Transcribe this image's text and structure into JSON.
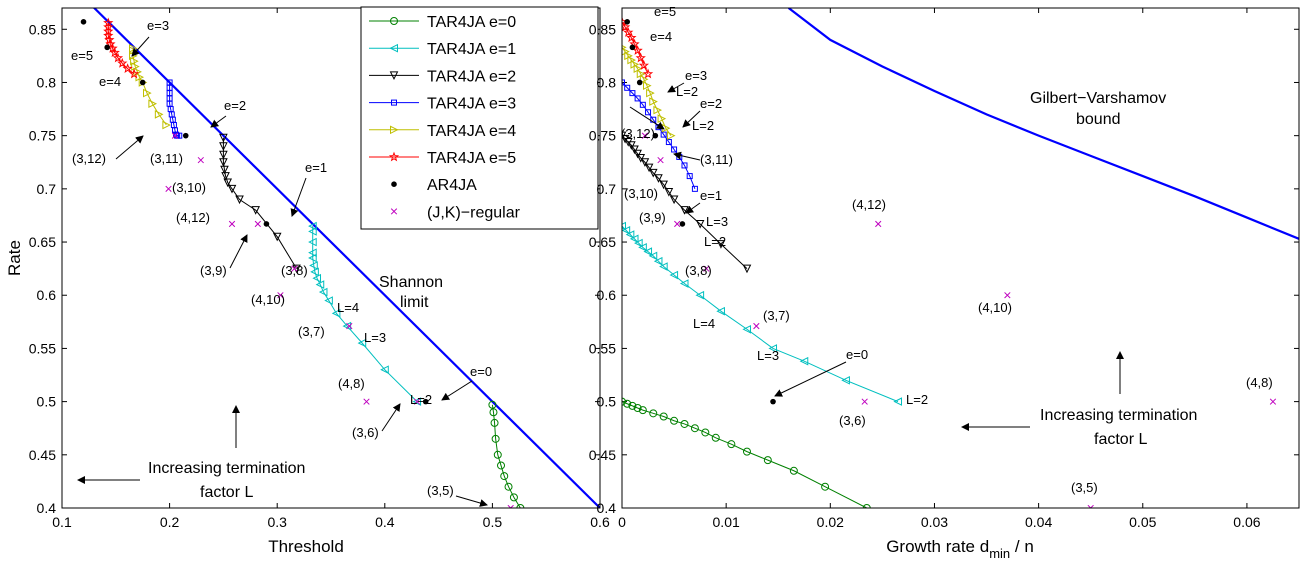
{
  "chart_data": [
    {
      "type": "line",
      "xlabel": "Threshold",
      "ylabel": "Rate",
      "xlim": [
        0.1,
        0.6
      ],
      "ylim": [
        0.4,
        0.87
      ],
      "xticks": [
        "0.1",
        "0.2",
        "0.3",
        "0.4",
        "0.5",
        "0.6"
      ],
      "yticks": [
        "0.4",
        "0.45",
        "0.5",
        "0.55",
        "0.6",
        "0.65",
        "0.7",
        "0.75",
        "0.8",
        "0.85"
      ],
      "grid": false,
      "legend_position": "top-right",
      "legend": [
        {
          "label": "TAR4JA e=0",
          "color": "#008000",
          "marker": "circle",
          "line": true
        },
        {
          "label": "TAR4JA e=1",
          "color": "#00bfbf",
          "marker": "triangle-left",
          "line": true
        },
        {
          "label": "TAR4JA e=2",
          "color": "#000000",
          "marker": "triangle-down",
          "line": true
        },
        {
          "label": "TAR4JA e=3",
          "color": "#0000ff",
          "marker": "square",
          "line": true
        },
        {
          "label": "TAR4JA e=4",
          "color": "#bfbf00",
          "marker": "triangle-right",
          "line": true
        },
        {
          "label": "TAR4JA e=5",
          "color": "#ff0000",
          "marker": "star",
          "line": true
        },
        {
          "label": "AR4JA",
          "color": "#000000",
          "marker": "dot",
          "line": false
        },
        {
          "label": "(J,K)−regular",
          "color": "#bf00bf",
          "marker": "x",
          "line": false
        }
      ],
      "limit_line": {
        "x": [
          0.1,
          0.6
        ],
        "y": [
          0.9,
          0.4
        ],
        "color": "#0000ff"
      },
      "series": [
        {
          "name": "TAR4JA e=0",
          "color": "#008000",
          "marker": "circle",
          "x": [
            0.5,
            0.501,
            0.502,
            0.503,
            0.505,
            0.508,
            0.511,
            0.515,
            0.52,
            0.526
          ],
          "y": [
            0.497,
            0.49,
            0.48,
            0.465,
            0.45,
            0.44,
            0.43,
            0.42,
            0.41,
            0.4
          ]
        },
        {
          "name": "TAR4JA e=1",
          "color": "#00bfbf",
          "marker": "triangle-left",
          "x": [
            0.333,
            0.333,
            0.333,
            0.333,
            0.333,
            0.334,
            0.335,
            0.337,
            0.34,
            0.343,
            0.348,
            0.355,
            0.365,
            0.379,
            0.4,
            0.43
          ],
          "y": [
            0.665,
            0.66,
            0.65,
            0.64,
            0.635,
            0.628,
            0.622,
            0.616,
            0.61,
            0.603,
            0.595,
            0.583,
            0.571,
            0.555,
            0.53,
            0.5
          ]
        },
        {
          "name": "TAR4JA e=2",
          "color": "#000000",
          "marker": "triangle-down",
          "x": [
            0.25,
            0.25,
            0.25,
            0.25,
            0.251,
            0.252,
            0.254,
            0.258,
            0.265,
            0.28,
            0.3,
            0.318
          ],
          "y": [
            0.748,
            0.74,
            0.732,
            0.725,
            0.718,
            0.712,
            0.706,
            0.7,
            0.69,
            0.68,
            0.655,
            0.625
          ]
        },
        {
          "name": "TAR4JA e=3",
          "color": "#0000ff",
          "marker": "square",
          "x": [
            0.2,
            0.2,
            0.2,
            0.2,
            0.2,
            0.201,
            0.202,
            0.203,
            0.204,
            0.205,
            0.206,
            0.207,
            0.209
          ],
          "y": [
            0.8,
            0.795,
            0.79,
            0.785,
            0.78,
            0.775,
            0.77,
            0.765,
            0.76,
            0.755,
            0.751,
            0.75,
            0.75
          ]
        },
        {
          "name": "TAR4JA e=4",
          "color": "#bfbf00",
          "marker": "triangle-right",
          "x": [
            0.166,
            0.166,
            0.166,
            0.167,
            0.168,
            0.17,
            0.172,
            0.175,
            0.179,
            0.184,
            0.19,
            0.197
          ],
          "y": [
            0.832,
            0.83,
            0.825,
            0.82,
            0.815,
            0.81,
            0.805,
            0.8,
            0.79,
            0.78,
            0.77,
            0.76
          ]
        },
        {
          "name": "TAR4JA e=5",
          "color": "#ff0000",
          "marker": "star",
          "x": [
            0.143,
            0.143,
            0.143,
            0.143,
            0.144,
            0.145,
            0.147,
            0.149,
            0.152,
            0.156,
            0.161,
            0.167
          ],
          "y": [
            0.856,
            0.852,
            0.848,
            0.844,
            0.84,
            0.836,
            0.832,
            0.828,
            0.823,
            0.818,
            0.813,
            0.808
          ]
        }
      ],
      "ar4ja": {
        "x": [
          0.438,
          0.29,
          0.215,
          0.175,
          0.142,
          0.12
        ],
        "y": [
          0.5,
          0.667,
          0.75,
          0.8,
          0.833,
          0.857
        ]
      },
      "regular": {
        "x": [
          0.517,
          0.43,
          0.383,
          0.367,
          0.316,
          0.282,
          0.258,
          0.303,
          0.205,
          0.229,
          0.199
        ],
        "y": [
          0.4,
          0.5,
          0.5,
          0.571,
          0.625,
          0.667,
          0.667,
          0.6,
          0.75,
          0.727,
          0.7
        ]
      },
      "annotations": {
        "e0": "e=0",
        "e1": "e=1",
        "e2": "e=2",
        "e3": "e=3",
        "e4": "e=4",
        "e5": "e=5",
        "l2": "L=2",
        "l3": "L=3",
        "l4": "L=4",
        "r35": "(3,5)",
        "r36": "(3,6)",
        "r48": "(4,8)",
        "r37": "(3,7)",
        "r410": "(4,10)",
        "r38": "(3,8)",
        "r39": "(3,9)",
        "r412": "(4,12)",
        "r310": "(3,10)",
        "r311": "(3,11)",
        "r312": "(3,12)",
        "shannon_line1": "Shannon",
        "shannon_line2": "limit",
        "inc_line1": "Increasing termination",
        "inc_line2": "factor L"
      }
    },
    {
      "type": "line",
      "xlabel": "Growth rate d",
      "xlabel_sub": "min",
      "xlabel_tail": " / n",
      "xlim": [
        0,
        0.065
      ],
      "ylim": [
        0.4,
        0.87
      ],
      "xticks": [
        "0",
        "0.01",
        "0.02",
        "0.03",
        "0.04",
        "0.05",
        "0.06"
      ],
      "yticks": [
        "0.4",
        "0.45",
        "0.5",
        "0.55",
        "0.6",
        "0.65",
        "0.7",
        "0.75",
        "0.8",
        "0.85"
      ],
      "grid": false,
      "limit_curve": {
        "x": [
          0.016,
          0.02,
          0.025,
          0.03,
          0.035,
          0.04,
          0.045,
          0.05,
          0.055,
          0.06,
          0.065
        ],
        "y": [
          0.87,
          0.84,
          0.815,
          0.792,
          0.77,
          0.75,
          0.731,
          0.712,
          0.693,
          0.673,
          0.653
        ],
        "color": "#0000ff"
      },
      "series": [
        {
          "name": "TAR4JA e=0",
          "color": "#008000",
          "marker": "circle",
          "x": [
            0.0,
            0.0005,
            0.001,
            0.0015,
            0.002,
            0.003,
            0.004,
            0.005,
            0.006,
            0.007,
            0.008,
            0.009,
            0.0105,
            0.012,
            0.014,
            0.0165,
            0.0195,
            0.0235
          ],
          "y": [
            0.5,
            0.498,
            0.496,
            0.494,
            0.492,
            0.489,
            0.486,
            0.482,
            0.479,
            0.475,
            0.471,
            0.466,
            0.46,
            0.453,
            0.445,
            0.435,
            0.42,
            0.4
          ]
        },
        {
          "name": "TAR4JA e=1",
          "color": "#00bfbf",
          "marker": "triangle-left",
          "x": [
            0.0,
            0.0004,
            0.0008,
            0.0012,
            0.0016,
            0.002,
            0.0025,
            0.003,
            0.0035,
            0.004,
            0.005,
            0.006,
            0.0075,
            0.0095,
            0.012,
            0.0145,
            0.0175,
            0.0215,
            0.0265
          ],
          "y": [
            0.665,
            0.661,
            0.657,
            0.653,
            0.649,
            0.645,
            0.641,
            0.637,
            0.632,
            0.627,
            0.619,
            0.611,
            0.6,
            0.585,
            0.568,
            0.55,
            0.538,
            0.52,
            0.5
          ]
        },
        {
          "name": "TAR4JA e=2",
          "color": "#000000",
          "marker": "triangle-down",
          "x": [
            0.0,
            0.0003,
            0.0006,
            0.0009,
            0.0012,
            0.0015,
            0.0018,
            0.0022,
            0.0026,
            0.003,
            0.0035,
            0.004,
            0.0045,
            0.005,
            0.006,
            0.0075,
            0.0095,
            0.012
          ],
          "y": [
            0.75,
            0.747,
            0.744,
            0.741,
            0.737,
            0.733,
            0.729,
            0.725,
            0.72,
            0.715,
            0.71,
            0.704,
            0.697,
            0.69,
            0.68,
            0.667,
            0.648,
            0.625
          ]
        },
        {
          "name": "TAR4JA e=3",
          "color": "#0000ff",
          "marker": "square",
          "x": [
            0.0,
            0.0005,
            0.001,
            0.0015,
            0.002,
            0.0025,
            0.003,
            0.0035,
            0.004,
            0.0045,
            0.005,
            0.0055,
            0.006,
            0.0065,
            0.007
          ],
          "y": [
            0.8,
            0.795,
            0.79,
            0.785,
            0.779,
            0.772,
            0.765,
            0.758,
            0.751,
            0.744,
            0.737,
            0.73,
            0.722,
            0.712,
            0.7
          ]
        },
        {
          "name": "TAR4JA e=4",
          "color": "#bfbf00",
          "marker": "triangle-right",
          "x": [
            0.0,
            0.0003,
            0.0006,
            0.0009,
            0.0012,
            0.0015,
            0.0018,
            0.0021,
            0.0024,
            0.0027,
            0.003,
            0.0034,
            0.0038,
            0.0042,
            0.0047
          ],
          "y": [
            0.833,
            0.829,
            0.825,
            0.821,
            0.817,
            0.813,
            0.808,
            0.803,
            0.797,
            0.79,
            0.782,
            0.774,
            0.766,
            0.757,
            0.75
          ]
        },
        {
          "name": "TAR4JA e=5",
          "color": "#ff0000",
          "marker": "star",
          "x": [
            0.0,
            0.0003,
            0.0006,
            0.0009,
            0.0012,
            0.0015,
            0.0018,
            0.0021,
            0.0025
          ],
          "y": [
            0.857,
            0.852,
            0.847,
            0.842,
            0.836,
            0.83,
            0.823,
            0.816,
            0.808
          ]
        }
      ],
      "ar4ja": {
        "x": [
          0.0145,
          0.0058,
          0.0032,
          0.0017,
          0.001,
          0.0005
        ],
        "y": [
          0.5,
          0.667,
          0.75,
          0.8,
          0.833,
          0.857
        ]
      },
      "regular": {
        "x": [
          0.045,
          0.0233,
          0.0625,
          0.0129,
          0.037,
          0.0081,
          0.0246,
          0.0053,
          0.0037,
          0.0022
        ],
        "y": [
          0.4,
          0.5,
          0.5,
          0.571,
          0.6,
          0.625,
          0.667,
          0.667,
          0.727,
          0.75
        ]
      },
      "annotations": {
        "e0": "e=0",
        "e1": "e=1",
        "e2": "e=2",
        "e3": "e=3",
        "e4": "e=4",
        "e5": "e=5",
        "l2": "L=2",
        "l3": "L=3",
        "l4": "L=4",
        "r35": "(3,5)",
        "r36": "(3,6)",
        "r48": "(4,8)",
        "r37": "(3,7)",
        "r410": "(4,10)",
        "r38": "(3,8)",
        "r39": "(3,9)",
        "r412": "(4,12)",
        "r310": "(3,10)",
        "r311": "(3,11)",
        "r312": "(3,12)",
        "gv_line1": "Gilbert−Varshamov",
        "gv_line2": "bound",
        "inc_line1": "Increasing termination",
        "inc_line2": "factor L"
      }
    }
  ]
}
